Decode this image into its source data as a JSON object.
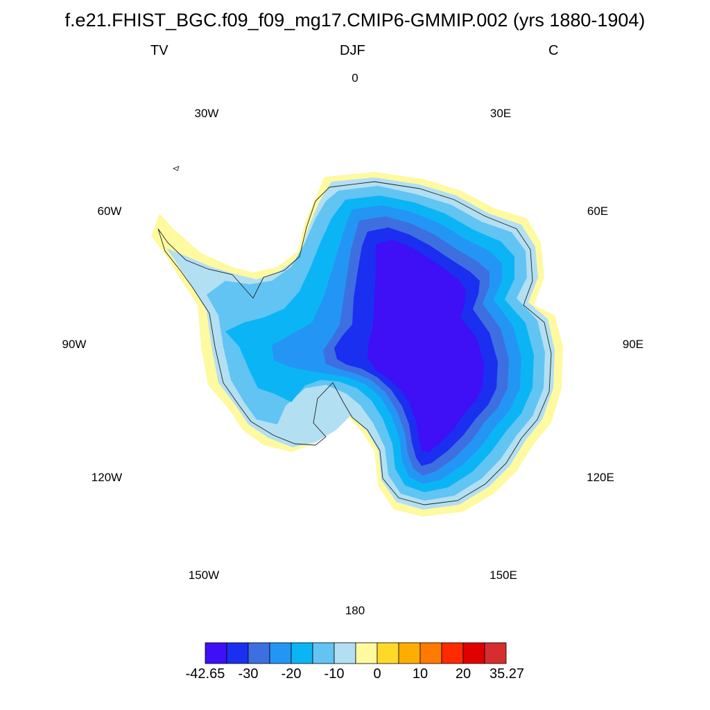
{
  "title": "f.e21.FHIST_BGC.f09_f09_mg17.CMIP6-GMMIP.002 (yrs 1880-1904)",
  "subtitles": {
    "left": "TV",
    "center": "DJF",
    "right": "C"
  },
  "longitude_labels": [
    "0",
    "30E",
    "60E",
    "90E",
    "120E",
    "150E",
    "180",
    "150W",
    "120W",
    "90W",
    "60W",
    "30W"
  ],
  "colorbar": {
    "colors": [
      "#3f0ff5",
      "#1a2ff0",
      "#3e6fe0",
      "#2396f5",
      "#0bb5f5",
      "#62c4f2",
      "#b3dff2",
      "#fff9a0",
      "#ffd92a",
      "#ffad00",
      "#ff7a00",
      "#ff2a00",
      "#e00000",
      "#d62e2e"
    ],
    "labels": [
      "-42.65",
      "-30",
      "-20",
      "-10",
      "0",
      "10",
      "20",
      "35.27"
    ]
  },
  "chart_data": {
    "type": "heatmap",
    "projection": "south polar stereographic",
    "variable": "TV",
    "season": "DJF",
    "units": "C",
    "value_range": [
      -42.65,
      35.27
    ],
    "levels": [
      -42.65,
      -35,
      -30,
      -25,
      -20,
      -15,
      -10,
      -5,
      0,
      5,
      10,
      15,
      20,
      25,
      35.27
    ],
    "pattern": "coldest (below -35) over the East Antarctic plateau interior, warming toward the coast; Ross and Ronne-Filchner ice shelves -10 to -5; coastal fringe and Antarctic Peninsula 0 to 5"
  }
}
